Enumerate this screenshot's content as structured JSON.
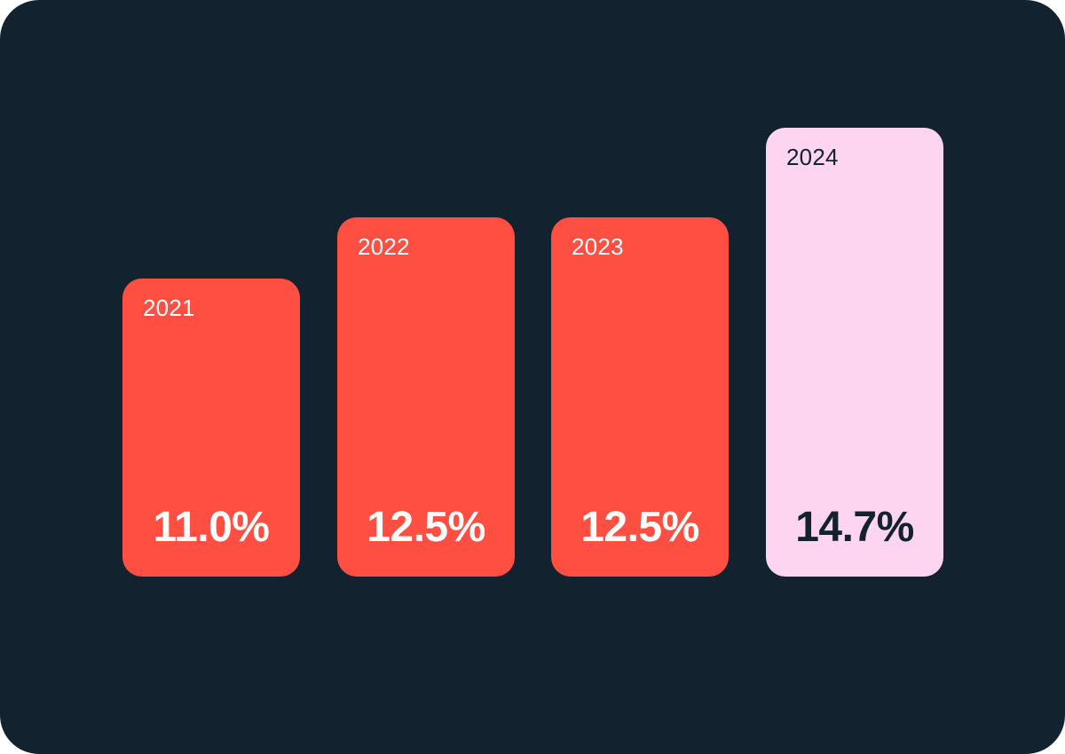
{
  "chart_data": {
    "type": "bar",
    "categories": [
      "2021",
      "2022",
      "2023",
      "2024"
    ],
    "values": [
      11.0,
      12.5,
      12.5,
      14.7
    ],
    "value_labels": [
      "11.0%",
      "12.5%",
      "12.5%",
      "14.7%"
    ],
    "title": "",
    "xlabel": "",
    "ylabel": "",
    "grid": false,
    "legend": "none",
    "colors": {
      "background": "#12222f",
      "bar": "#ff4f42",
      "highlight_bar": "#fdd5f0",
      "bar_text": "#ffffff",
      "highlight_text": "#12222f"
    },
    "highlight_index": 3
  }
}
